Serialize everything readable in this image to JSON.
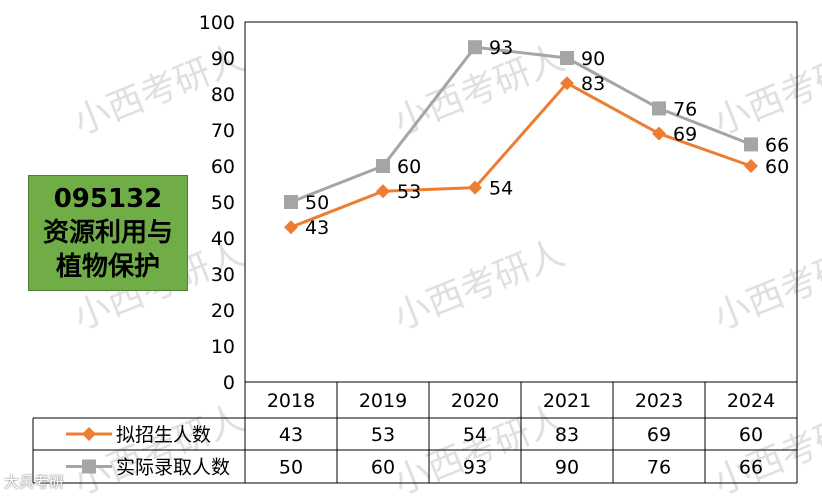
{
  "chart_data": {
    "type": "line",
    "title": "",
    "badge_lines": [
      "095132",
      "资源利用与",
      "植物保护"
    ],
    "categories": [
      "2018",
      "2019",
      "2020",
      "2021",
      "2023",
      "2024"
    ],
    "series": [
      {
        "name": "拟招生人数",
        "values": [
          43,
          53,
          54,
          83,
          69,
          60
        ],
        "color": "#ed7d31",
        "marker": "diamond"
      },
      {
        "name": "实际录取人数",
        "values": [
          50,
          60,
          93,
          90,
          76,
          66
        ],
        "color": "#a5a5a5",
        "marker": "square"
      }
    ],
    "ylim": [
      0,
      100
    ],
    "yticks": [
      "0",
      "10",
      "20",
      "30",
      "40",
      "50",
      "60",
      "70",
      "80",
      "90",
      "100"
    ],
    "data_table": true,
    "watermark": "小西考研人"
  },
  "corner_watermark": "大兵考研"
}
